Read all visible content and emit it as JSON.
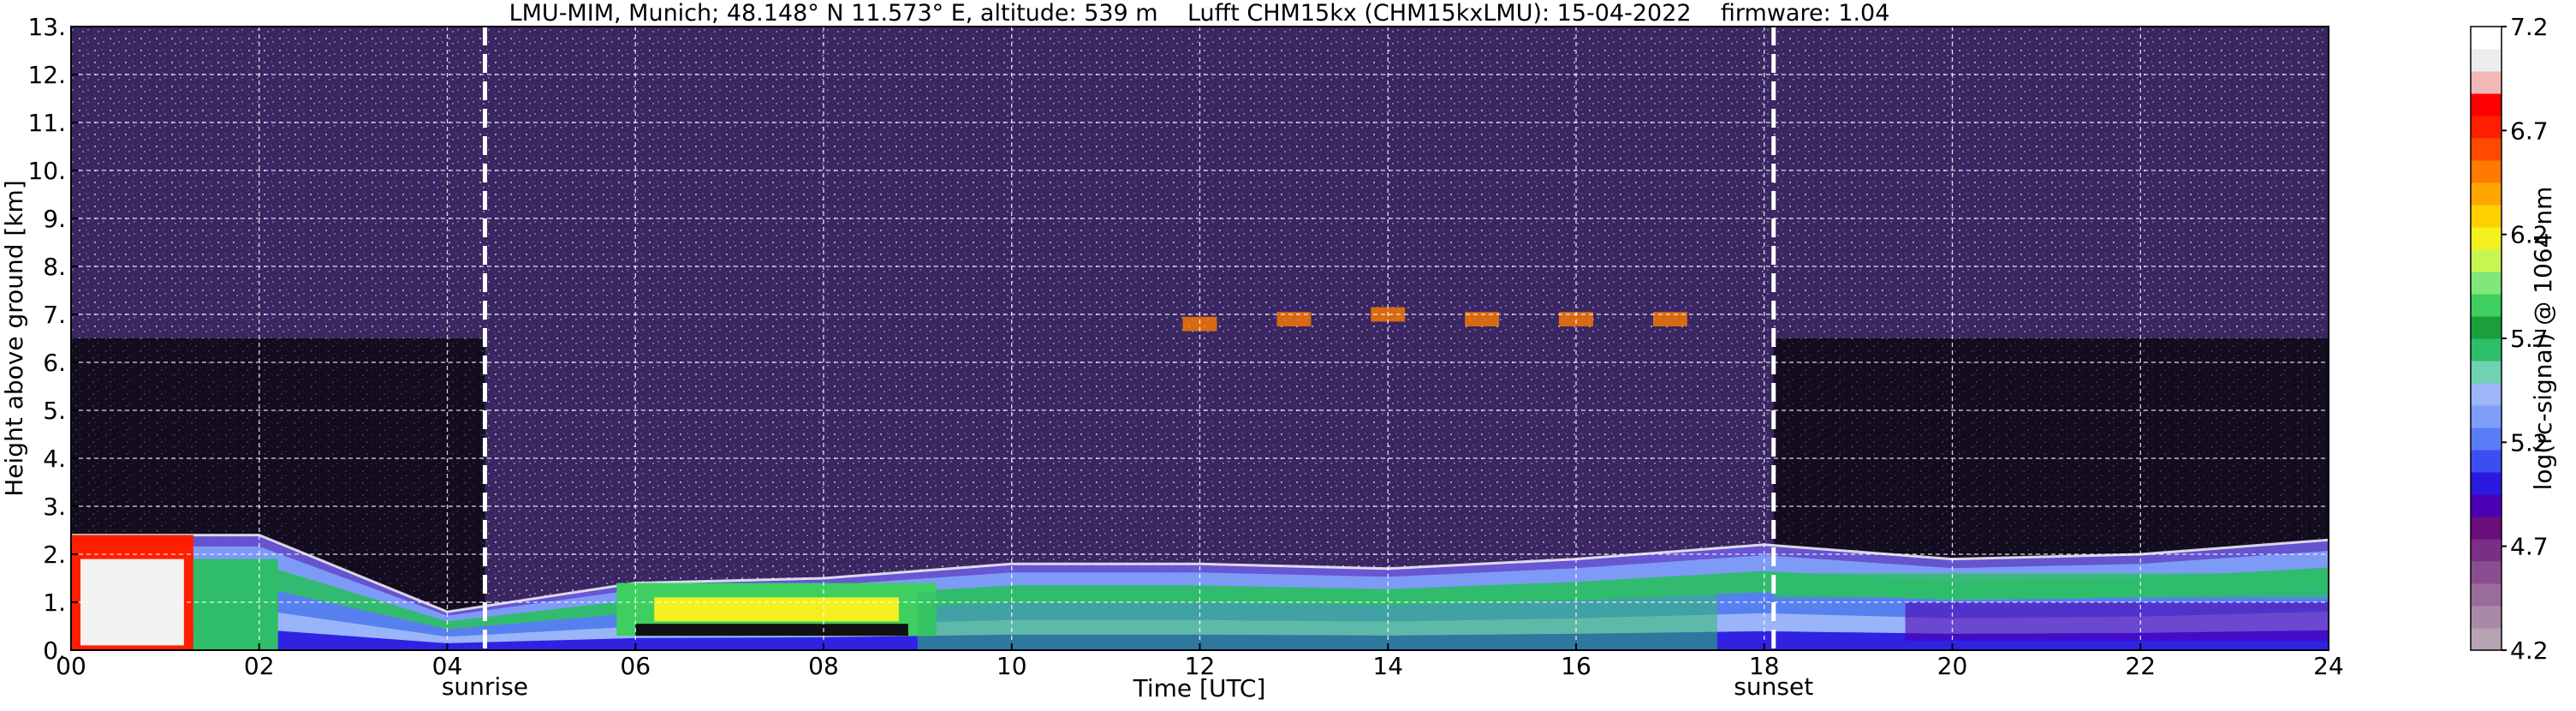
{
  "chart_data": {
    "type": "heatmap",
    "title": "LMU-MIM, Munich; 48.148° N 11.573° E, altitude: 539 m    Lufft CHM15kx (CHM15kxLMU): 15-04-2022    firmware: 1.04",
    "xlabel": "Time [UTC]",
    "ylabel": "Height above ground [km]",
    "xlim": [
      0,
      24
    ],
    "ylim": [
      0,
      13
    ],
    "x_ticks": [
      "00",
      "02",
      "04",
      "06",
      "08",
      "10",
      "12",
      "14",
      "16",
      "18",
      "20",
      "22",
      "24"
    ],
    "y_ticks": [
      "0.",
      "1.",
      "2.",
      "3.",
      "4.",
      "5.",
      "6.",
      "7.",
      "8.",
      "9.",
      "10.",
      "11.",
      "12.",
      "13."
    ],
    "grid": true,
    "events": [
      {
        "label": "sunrise",
        "time": 4.4
      },
      {
        "label": "sunset",
        "time": 18.1
      }
    ],
    "colorbar": {
      "label": "log(rc-signal) @ 1064 nm",
      "min": 4.2,
      "max": 7.2,
      "ticks": [
        "4.2",
        "4.7",
        "5.2",
        "5.7",
        "6.2",
        "6.7",
        "7.2"
      ],
      "colors": [
        "#b8a3b5",
        "#a88aa6",
        "#9a6c9c",
        "#8a4e90",
        "#7a2f86",
        "#6a0f7c",
        "#4c00b4",
        "#2a1ae0",
        "#3b4ef2",
        "#5a7cf6",
        "#7e9ef8",
        "#9db6f8",
        "#6fd2b0",
        "#2ebd68",
        "#1a9f3c",
        "#3fcf60",
        "#7ee878",
        "#c8f550",
        "#f4f020",
        "#ffd000",
        "#ffa500",
        "#ff7a00",
        "#ff4a00",
        "#ff1e00",
        "#ff0000",
        "#f2b8b8",
        "#ececec",
        "#ffffff"
      ]
    },
    "layers": [
      {
        "name": "aerosol layer",
        "x": [
          0,
          2,
          4,
          6,
          8,
          10,
          12,
          14,
          16,
          18,
          20,
          22,
          24
        ],
        "height_top": [
          2.4,
          2.4,
          0.8,
          1.4,
          1.5,
          1.8,
          1.8,
          1.7,
          1.9,
          2.2,
          1.9,
          2.0,
          2.3
        ]
      },
      {
        "name": "cloud layer",
        "x": [
          12,
          13,
          14,
          15,
          16,
          17
        ],
        "height": [
          6.8,
          6.9,
          7.0,
          6.9,
          6.9,
          6.9
        ]
      }
    ]
  }
}
